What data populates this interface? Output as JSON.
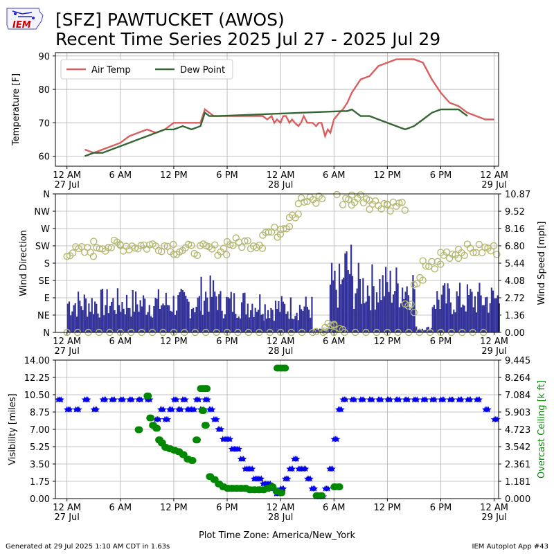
{
  "header": {
    "title_line1": "[SFZ] PAWTUCKET (AWOS)",
    "title_line2": "Recent Time Series 2025 Jul 27 - 2025 Jul 29",
    "logo_text": "IEM"
  },
  "footer": {
    "generated": "Generated at 29 Jul 2025 1:10 AM CDT in 1.63s",
    "app": "IEM Autoplot App #43"
  },
  "chart_data": [
    {
      "type": "line",
      "ylabel": "Temperature [F]",
      "ylim": [
        57,
        91
      ],
      "yticks": [
        60,
        70,
        80,
        90
      ],
      "xlim_hours": [
        -1.3,
        48.5
      ],
      "x_tick_labels": [
        "12 AM\n27 Jul",
        "6 AM",
        "12 PM",
        "6 PM",
        "12 AM\n28 Jul",
        "6 AM",
        "12 PM",
        "6 PM",
        "12 AM\n29 Jul"
      ],
      "grid": true,
      "legend": "top-left",
      "series": [
        {
          "name": "Air Temp",
          "color": "#d95f5f",
          "x": [
            2,
            3,
            4,
            5,
            6,
            7,
            8,
            9,
            10,
            11,
            12,
            13,
            14,
            15,
            15.5,
            16,
            16.5,
            17,
            18,
            19,
            20,
            21,
            22,
            22.5,
            23,
            23.3,
            23.6,
            24,
            24.3,
            24.6,
            25,
            25.3,
            25.6,
            26,
            26.3,
            26.6,
            27,
            27.3,
            27.6,
            28,
            28.3,
            28.6,
            29,
            29.3,
            29.6,
            30,
            30.3,
            30.6,
            31,
            31.5,
            32,
            33,
            34,
            35,
            36,
            37,
            38,
            39,
            40,
            41,
            42,
            43,
            44,
            45,
            46,
            47,
            48
          ],
          "values": [
            62,
            61,
            62,
            63,
            64,
            66,
            67,
            68,
            67,
            68,
            70,
            70,
            70,
            70,
            74,
            73,
            72,
            72,
            72,
            72,
            72,
            72,
            72,
            71,
            72,
            70,
            71,
            70,
            72,
            72,
            70,
            71,
            70,
            69,
            70,
            72,
            70,
            70,
            70,
            69,
            70,
            70,
            66,
            68,
            67,
            71,
            72,
            73,
            74,
            76,
            79,
            83,
            84,
            87,
            88,
            89,
            89,
            89,
            88,
            83,
            79,
            76,
            75,
            73,
            72,
            71,
            71
          ]
        },
        {
          "name": "Dew Point",
          "color": "#336633",
          "x": [
            2,
            3,
            4,
            5,
            6,
            7,
            8,
            9,
            10,
            11,
            12,
            13,
            14,
            15,
            15.5,
            16,
            17,
            31,
            31.5,
            32,
            32.5,
            33,
            34,
            35,
            36,
            37,
            38,
            39,
            40,
            41,
            42,
            43,
            44,
            45
          ],
          "values": [
            60,
            61,
            61,
            62,
            63,
            64,
            65,
            66,
            67,
            68,
            68,
            69,
            68,
            69,
            73,
            72,
            72,
            73.5,
            73.5,
            74,
            73,
            72,
            72,
            71,
            70,
            69,
            68,
            69,
            71,
            73,
            74,
            74,
            74,
            72
          ]
        }
      ]
    },
    {
      "type": "bar+scatter",
      "ylabel": "Wind Direction",
      "y2label": "Wind Speed [mph]",
      "y_tick_labels": [
        "N",
        "NE",
        "E",
        "SE",
        "S",
        "SW",
        "W",
        "NW",
        "N"
      ],
      "ylim_deg": [
        0,
        360
      ],
      "y2_tick_labels": [
        "0.00",
        "1.36",
        "2.72",
        "4.08",
        "5.44",
        "6.80",
        "8.16",
        "9.52",
        "10.87"
      ],
      "y2lim": [
        0,
        10.87
      ],
      "grid": true,
      "series": [
        {
          "name": "Wind Direction",
          "marker": "open-circle",
          "color": "#b5b870",
          "segments": [
            {
              "from": 0,
              "to": 3,
              "deg": 210
            },
            {
              "from": 3,
              "to": 6,
              "deg": 225
            },
            {
              "from": 6,
              "to": 12,
              "deg": 225
            },
            {
              "from": 12,
              "to": 18,
              "deg": 215
            },
            {
              "from": 18,
              "to": 22,
              "deg": 232
            },
            {
              "from": 22,
              "to": 24,
              "deg": 260
            },
            {
              "from": 24,
              "to": 25,
              "deg": 280
            },
            {
              "from": 25,
              "to": 26,
              "deg": 310
            },
            {
              "from": 26,
              "to": 28,
              "deg": 340
            },
            {
              "from": 28,
              "to": 29,
              "deg": 355
            },
            {
              "from": 29,
              "to": 30,
              "deg": 20
            },
            {
              "from": 30,
              "to": 31,
              "deg": 10
            },
            {
              "from": 31,
              "to": 32,
              "deg": 340
            },
            {
              "from": 32,
              "to": 34,
              "deg": 350
            },
            {
              "from": 34,
              "to": 36,
              "deg": 335
            },
            {
              "from": 36,
              "to": 38,
              "deg": 330
            },
            {
              "from": 38,
              "to": 39,
              "deg": 60
            },
            {
              "from": 39,
              "to": 40,
              "deg": 130
            },
            {
              "from": 40,
              "to": 42,
              "deg": 175
            },
            {
              "from": 42,
              "to": 44,
              "deg": 205
            },
            {
              "from": 44,
              "to": 48.5,
              "deg": 215
            }
          ]
        },
        {
          "name": "Wind Speed",
          "marker": "bar",
          "color": "#333399",
          "segments": [
            {
              "from": 0,
              "to": 15,
              "max": 3.5
            },
            {
              "from": 15,
              "to": 17,
              "max": 4.5
            },
            {
              "from": 17,
              "to": 22,
              "max": 3.5
            },
            {
              "from": 22,
              "to": 27.5,
              "max": 3
            },
            {
              "from": 27.5,
              "to": 29.5,
              "max": 0.3
            },
            {
              "from": 29.5,
              "to": 31,
              "max": 5.5
            },
            {
              "from": 31,
              "to": 32,
              "max": 7.5
            },
            {
              "from": 32,
              "to": 39,
              "max": 5.5
            },
            {
              "from": 39,
              "to": 41,
              "max": 0.5
            },
            {
              "from": 41,
              "to": 48.5,
              "max": 4
            }
          ]
        }
      ]
    },
    {
      "type": "scatter",
      "ylabel": "Visibility [miles]",
      "y2label": "Overcast Ceiling [k ft]",
      "yticks": [
        "0.00",
        "1.75",
        "3.50",
        "5.25",
        "7.00",
        "8.75",
        "10.50",
        "12.25",
        "14.00"
      ],
      "ylim": [
        0,
        14
      ],
      "y2_tick_labels": [
        "0.000",
        "1.181",
        "2.361",
        "3.542",
        "4.723",
        "5.903",
        "7.084",
        "8.264",
        "9.445"
      ],
      "y2lim": [
        0,
        9.445
      ],
      "x_axis_label": "Plot Time Zone: America/New_York",
      "grid": true,
      "series": [
        {
          "name": "Visibility",
          "marker": "star",
          "color": "#0000ee",
          "x": [
            -1,
            0,
            1,
            2,
            3,
            4,
            5,
            6,
            7,
            8,
            9,
            10,
            10.5,
            11,
            11.5,
            12,
            12.5,
            13,
            13.5,
            14,
            14.5,
            15,
            15.5,
            16,
            16.5,
            17,
            17.5,
            18,
            18.5,
            19,
            19.5,
            20,
            20.5,
            21,
            21.5,
            22,
            22.5,
            23,
            23.5,
            24,
            24.5,
            25,
            25.5,
            26,
            26.5,
            27,
            27.5,
            28,
            28.5,
            29,
            29.5,
            30,
            30.5,
            31,
            32,
            33,
            34,
            35,
            36,
            37,
            38,
            39,
            40,
            41,
            42,
            43,
            44,
            45,
            46,
            47,
            48
          ],
          "values": [
            10,
            9,
            9,
            10,
            9,
            10,
            10,
            10,
            10,
            10,
            10,
            8,
            9,
            8,
            9,
            10,
            9,
            10,
            9,
            9,
            10,
            9,
            10,
            9,
            8,
            7,
            6,
            6,
            5,
            5,
            4,
            3,
            3,
            2,
            2,
            1.5,
            1.5,
            1,
            0.5,
            1,
            2,
            3,
            4,
            3,
            3,
            2,
            1,
            0.2,
            0.2,
            1,
            3,
            6,
            9,
            10,
            10,
            10,
            10,
            10,
            10,
            10,
            10,
            10,
            10,
            10,
            10,
            10,
            10,
            10,
            10,
            9,
            8
          ]
        },
        {
          "name": "Overcast Ceiling",
          "marker": "circle",
          "color": "#008800",
          "x": [
            8,
            9,
            9.3,
            9.6,
            10,
            10.3,
            10.6,
            11,
            11.5,
            12,
            12.5,
            13,
            13.5,
            14,
            14.5,
            15,
            15.2,
            15.5,
            16,
            16.5,
            17,
            17.5,
            18,
            18.5,
            19,
            19.5,
            20,
            20.5,
            21,
            21.5,
            22,
            22.5,
            23,
            23.5,
            24,
            28,
            28.5,
            30,
            30.5
          ],
          "values": [
            4.7,
            7,
            5.5,
            5,
            4.8,
            4,
            3.8,
            3.5,
            3.4,
            3.3,
            3.2,
            3,
            2.7,
            2.6,
            4,
            7.5,
            6,
            5,
            1.5,
            1.3,
            1,
            0.8,
            0.7,
            0.7,
            0.7,
            0.7,
            0.7,
            0.6,
            0.6,
            0.6,
            0.6,
            0.7,
            0.8,
            0.5,
            0.4,
            0.2,
            0.2,
            0.8,
            0.8
          ]
        },
        {
          "name": "Overcast Ceiling (high)",
          "marker": "circle",
          "color": "#008800",
          "x": [
            15.3,
            15.6,
            23.6,
            24,
            24.4
          ],
          "values": [
            7.5,
            7.5,
            8.9,
            8.9,
            8.9
          ]
        }
      ]
    }
  ]
}
